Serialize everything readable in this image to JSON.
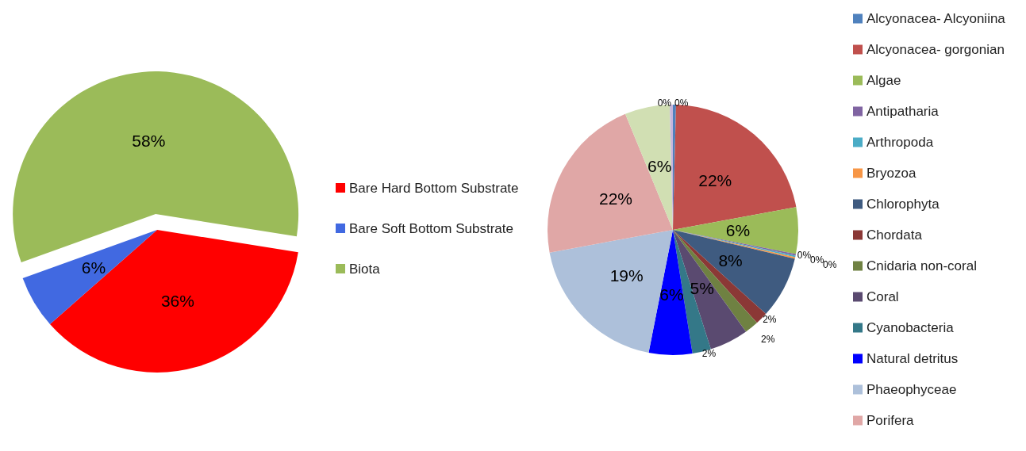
{
  "chart_data": [
    {
      "type": "pie",
      "categories": [
        "Bare Hard Bottom Substrate",
        "Bare Soft Bottom Substrate",
        "Biota"
      ],
      "values": [
        36,
        6,
        58
      ],
      "value_labels": [
        "36%",
        "6%",
        "58%"
      ],
      "colors": [
        "#ff0000",
        "#4169e1",
        "#9bbb59"
      ],
      "legend": "right"
    },
    {
      "type": "pie",
      "categories": [
        "Alcyonacea- Alcyoniina",
        "Alcyonacea- gorgonian",
        "Algae",
        "Antipatharia",
        "Arthropoda",
        "Bryozoa",
        "Chlorophyta",
        "Chordata",
        "Cnidaria non-coral",
        "Coral",
        "Cyanobacteria",
        "Natural detritus",
        "Phaeophyceae",
        "Porifera",
        null,
        null
      ],
      "values": [
        0.4,
        21.7,
        6.0,
        0.2,
        0.2,
        0.2,
        8.0,
        1.6,
        1.8,
        5.0,
        2.4,
        5.6,
        19.0,
        21.7,
        5.8,
        0.4
      ],
      "value_labels": [
        "0%",
        "22%",
        "6%",
        "0%",
        "0%",
        "0%",
        "8%",
        "2%",
        "2%",
        "5%",
        "2%",
        "6%",
        "19%",
        "22%",
        "6%",
        "0%"
      ],
      "colors": [
        "#4f81bd",
        "#c0504d",
        "#9bbb59",
        "#8064a2",
        "#4bacc6",
        "#f79646",
        "#3f5b80",
        "#8b3836",
        "#6f8142",
        "#5a4a70",
        "#347888",
        "#0000ff",
        "#adc0da",
        "#e0a7a6",
        "#d1dfb3",
        "#c6b5dc"
      ],
      "legend": "right"
    }
  ]
}
